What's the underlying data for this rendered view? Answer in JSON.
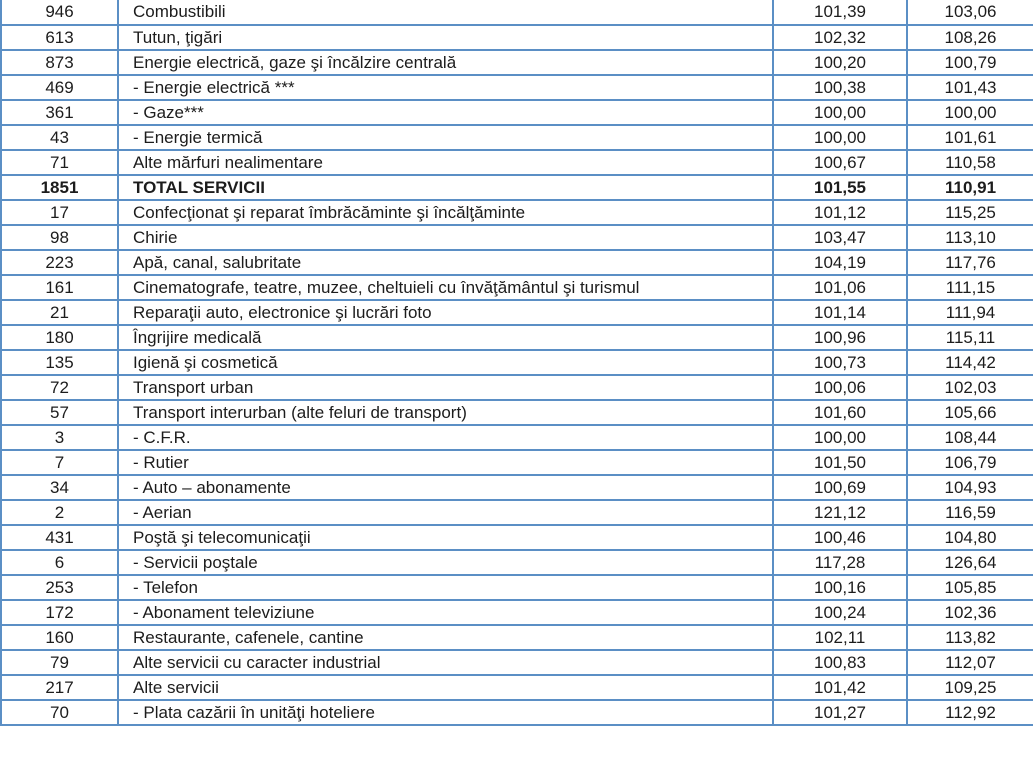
{
  "colors": {
    "border": "#5b8fc5",
    "text": "#1c1c1c",
    "background": "#ffffff",
    "total_row_text": "#1c1c1c"
  },
  "table": {
    "description_visible_header": "",
    "rows": [
      {
        "weight": "946",
        "category": "Combustibili",
        "index1": "101,39",
        "index2": "103,06",
        "bold": false
      },
      {
        "weight": "613",
        "category": "Tutun, ţigări",
        "index1": "102,32",
        "index2": "108,26",
        "bold": false
      },
      {
        "weight": "873",
        "category": "Energie electrică, gaze şi încălzire centrală",
        "index1": "100,20",
        "index2": "100,79",
        "bold": false
      },
      {
        "weight": "469",
        "category": "- Energie electrică ***",
        "index1": "100,38",
        "index2": "101,43",
        "bold": false
      },
      {
        "weight": "361",
        "category": "- Gaze***",
        "index1": "100,00",
        "index2": "100,00",
        "bold": false
      },
      {
        "weight": "43",
        "category": "- Energie termică",
        "index1": "100,00",
        "index2": "101,61",
        "bold": false
      },
      {
        "weight": "71",
        "category": "Alte mărfuri nealimentare",
        "index1": "100,67",
        "index2": "110,58",
        "bold": false
      },
      {
        "weight": "1851",
        "category": "TOTAL SERVICII",
        "index1": "101,55",
        "index2": "110,91",
        "bold": true
      },
      {
        "weight": "17",
        "category": "Confecţionat şi reparat îmbrăcăminte şi încălţăminte",
        "index1": "101,12",
        "index2": "115,25",
        "bold": false
      },
      {
        "weight": "98",
        "category": "Chirie",
        "index1": "103,47",
        "index2": "113,10",
        "bold": false
      },
      {
        "weight": "223",
        "category": "Apă, canal, salubritate",
        "index1": "104,19",
        "index2": "117,76",
        "bold": false
      },
      {
        "weight": "161",
        "category": "Cinematografe, teatre, muzee, cheltuieli cu învăţământul şi turismul",
        "index1": "101,06",
        "index2": "111,15",
        "bold": false
      },
      {
        "weight": "21",
        "category": "Reparaţii auto, electronice şi lucrări foto",
        "index1": "101,14",
        "index2": "111,94",
        "bold": false
      },
      {
        "weight": "180",
        "category": "Îngrijire medicală",
        "index1": "100,96",
        "index2": "115,11",
        "bold": false
      },
      {
        "weight": "135",
        "category": "Igienă şi cosmetică",
        "index1": "100,73",
        "index2": "114,42",
        "bold": false
      },
      {
        "weight": "72",
        "category": "Transport urban",
        "index1": "100,06",
        "index2": "102,03",
        "bold": false
      },
      {
        "weight": "57",
        "category": "Transport interurban (alte feluri de transport)",
        "index1": "101,60",
        "index2": "105,66",
        "bold": false
      },
      {
        "weight": "3",
        "category": "- C.F.R.",
        "index1": "100,00",
        "index2": "108,44",
        "bold": false
      },
      {
        "weight": "7",
        "category": "- Rutier",
        "index1": "101,50",
        "index2": "106,79",
        "bold": false
      },
      {
        "weight": "34",
        "category": "- Auto – abonamente",
        "index1": "100,69",
        "index2": "104,93",
        "bold": false
      },
      {
        "weight": "2",
        "category": "- Aerian",
        "index1": "121,12",
        "index2": "116,59",
        "bold": false
      },
      {
        "weight": "431",
        "category": "Poştă şi telecomunicaţii",
        "index1": "100,46",
        "index2": "104,80",
        "bold": false
      },
      {
        "weight": "6",
        "category": "- Servicii poştale",
        "index1": "117,28",
        "index2": "126,64",
        "bold": false
      },
      {
        "weight": "253",
        "category": "- Telefon",
        "index1": "100,16",
        "index2": "105,85",
        "bold": false
      },
      {
        "weight": "172",
        "category": "- Abonament televiziune",
        "index1": "100,24",
        "index2": "102,36",
        "bold": false
      },
      {
        "weight": "160",
        "category": "Restaurante, cafenele, cantine",
        "index1": "102,11",
        "index2": "113,82",
        "bold": false
      },
      {
        "weight": "79",
        "category": "Alte servicii cu caracter industrial",
        "index1": "100,83",
        "index2": "112,07",
        "bold": false
      },
      {
        "weight": "217",
        "category": "Alte servicii",
        "index1": "101,42",
        "index2": "109,25",
        "bold": false
      },
      {
        "weight": "70",
        "category": "- Plata cazării în unităţi hoteliere",
        "index1": "101,27",
        "index2": "112,92",
        "bold": false
      }
    ]
  }
}
